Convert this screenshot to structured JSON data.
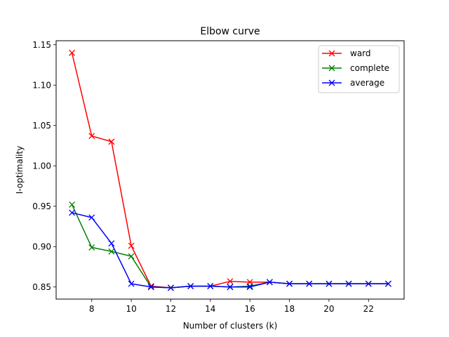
{
  "chart_data": {
    "type": "line",
    "title": "Elbow curve",
    "xlabel": "Number of clusters (k)",
    "ylabel": "I-optimality",
    "xlim": [
      6.2,
      23.8
    ],
    "ylim": [
      0.835,
      1.155
    ],
    "xticks": [
      8,
      10,
      12,
      14,
      16,
      18,
      20,
      22
    ],
    "yticks": [
      0.85,
      0.9,
      0.95,
      1.0,
      1.05,
      1.1,
      1.15
    ],
    "ytick_labels": [
      "0.85",
      "0.90",
      "0.95",
      "1.00",
      "1.05",
      "1.10",
      "1.15"
    ],
    "grid": false,
    "legend_position": "top-right",
    "marker": "x",
    "x": [
      7,
      8,
      9,
      10,
      11,
      12,
      13,
      14,
      15,
      16,
      17,
      18,
      19,
      20,
      21,
      22,
      23
    ],
    "series": [
      {
        "name": "ward",
        "color": "#ff0000",
        "values": [
          1.14,
          1.037,
          1.03,
          0.901,
          0.851,
          0.849,
          0.851,
          0.851,
          0.857,
          0.856,
          0.856,
          0.854,
          0.854,
          0.854,
          0.854,
          0.854,
          0.854
        ]
      },
      {
        "name": "complete",
        "color": "#008000",
        "values": [
          0.952,
          0.899,
          0.894,
          0.888,
          0.85,
          0.849,
          0.851,
          0.851,
          0.85,
          0.851,
          0.856,
          0.854,
          0.854,
          0.854,
          0.854,
          0.854,
          0.854
        ]
      },
      {
        "name": "average",
        "color": "#0000ff",
        "values": [
          0.942,
          0.936,
          0.904,
          0.854,
          0.85,
          0.849,
          0.851,
          0.851,
          0.85,
          0.85,
          0.856,
          0.854,
          0.854,
          0.854,
          0.854,
          0.854,
          0.854
        ]
      }
    ]
  }
}
